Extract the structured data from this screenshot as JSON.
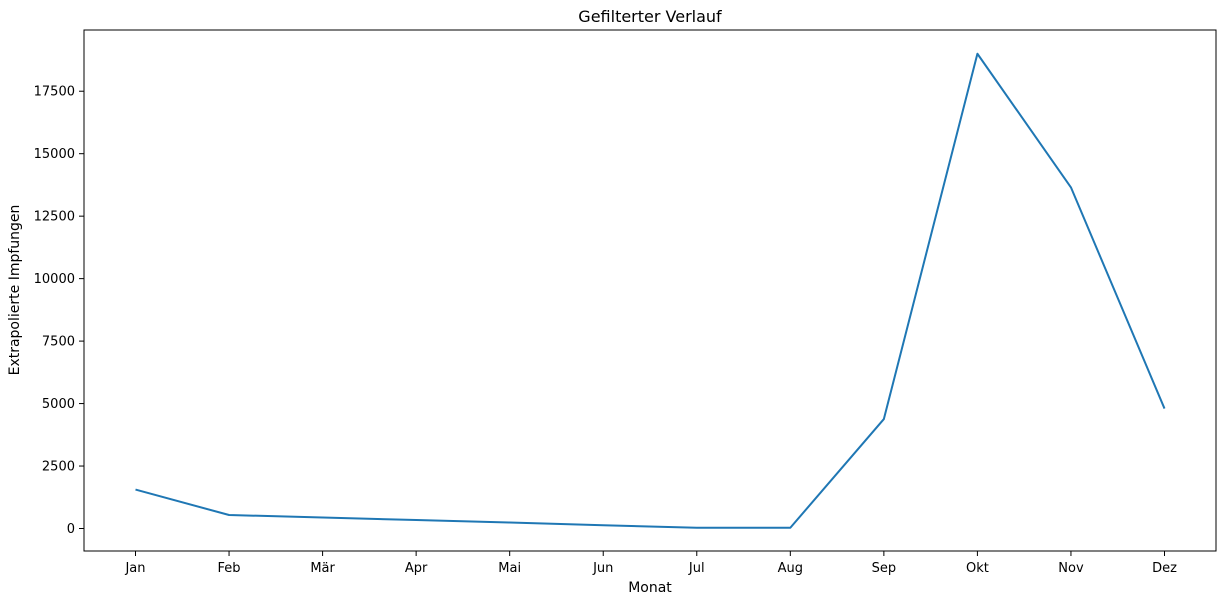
{
  "chart_data": {
    "type": "line",
    "title": "Gefilterter Verlauf",
    "xlabel": "Monat",
    "ylabel": "Extrapolierte Impfungen",
    "categories": [
      "Jan",
      "Feb",
      "Mär",
      "Apr",
      "Mai",
      "Jun",
      "Jul",
      "Aug",
      "Sep",
      "Okt",
      "Nov",
      "Dez"
    ],
    "series": [
      {
        "values": [
          1560,
          540,
          440,
          340,
          240,
          130,
          30,
          30,
          4380,
          19000,
          13650,
          4800
        ],
        "color": "#1f77b4"
      }
    ],
    "yticks": [
      0,
      2500,
      5000,
      7500,
      10000,
      12500,
      15000,
      17500
    ],
    "ylim": [
      -900,
      19950
    ],
    "grid": false
  }
}
